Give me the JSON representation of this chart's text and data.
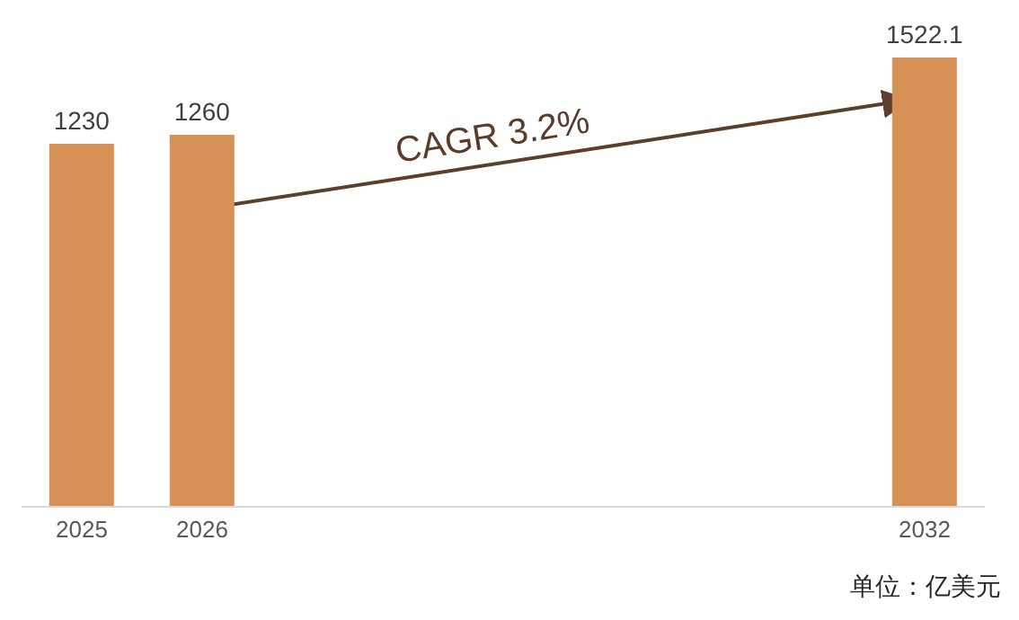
{
  "chart_data": {
    "type": "bar",
    "categories": [
      "2025",
      "2026",
      null,
      null,
      null,
      null,
      null,
      "2032"
    ],
    "values": [
      1230,
      1260,
      null,
      null,
      null,
      null,
      null,
      1522.1
    ],
    "color": "#d79157",
    "data_labels": true,
    "annotations": [
      "CAGR 3.2%",
      "单位：亿美元"
    ]
  }
}
